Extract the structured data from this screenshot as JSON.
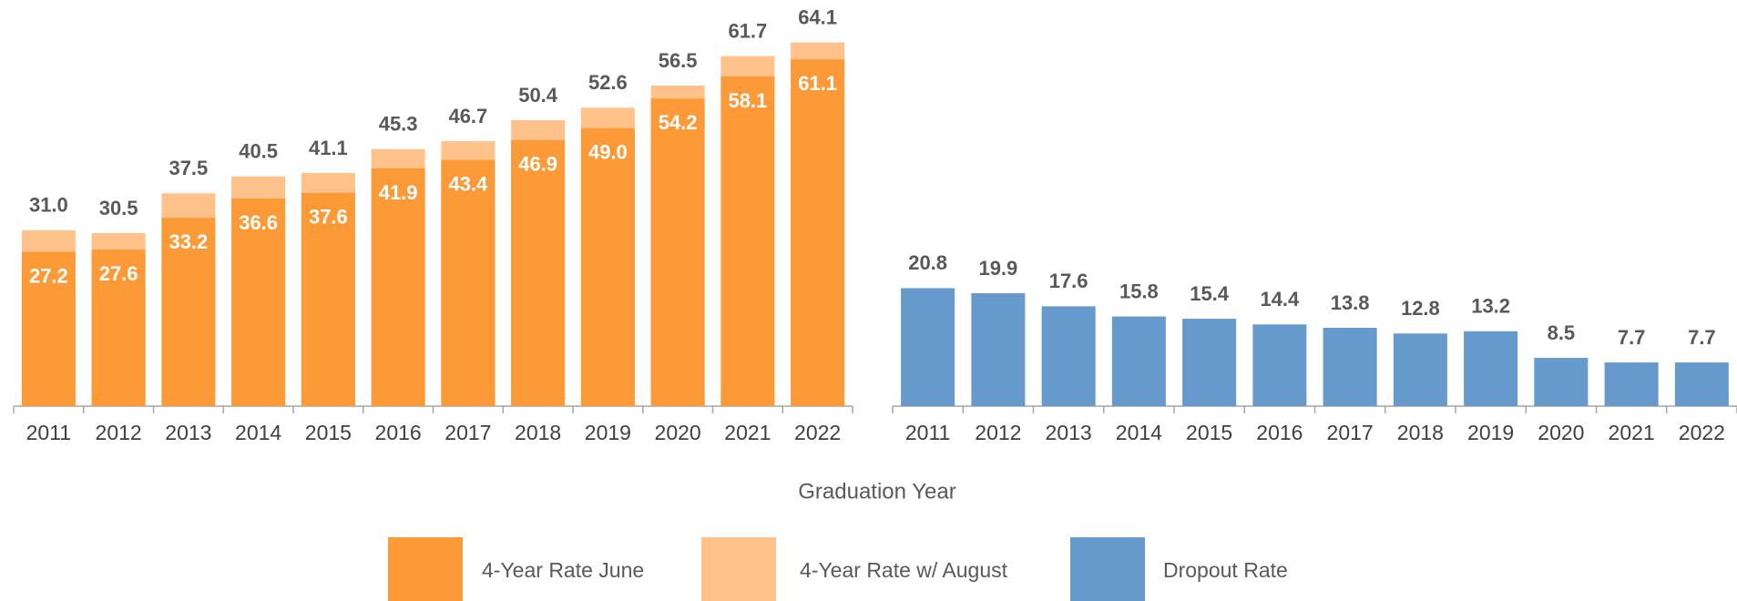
{
  "chart_data": [
    {
      "type": "bar",
      "overlap": true,
      "categories": [
        "2011",
        "2012",
        "2013",
        "2014",
        "2015",
        "2016",
        "2017",
        "2018",
        "2019",
        "2020",
        "2021",
        "2022"
      ],
      "x_label": "Graduation Year",
      "series": [
        {
          "name": "4-Year Rate w/ August",
          "color": "#ffc28a",
          "values": [
            31.0,
            30.5,
            37.5,
            40.5,
            41.1,
            45.3,
            46.7,
            50.4,
            52.6,
            56.5,
            61.7,
            64.1
          ],
          "value_labels": [
            "31.0",
            "30.5",
            "37.5",
            "40.5",
            "41.1",
            "45.3",
            "46.7",
            "50.4",
            "52.6",
            "56.5",
            "61.7",
            "64.1"
          ]
        },
        {
          "name": "4-Year Rate June",
          "color": "#fd9a38",
          "values": [
            27.2,
            27.6,
            33.2,
            36.6,
            37.6,
            41.9,
            43.4,
            46.9,
            49.0,
            54.2,
            58.1,
            61.1
          ],
          "value_labels": [
            "27.2",
            "27.6",
            "33.2",
            "36.6",
            "37.6",
            "41.9",
            "43.4",
            "46.9",
            "49.0",
            "54.2",
            "58.1",
            "61.1"
          ]
        }
      ]
    },
    {
      "type": "bar",
      "categories": [
        "2011",
        "2012",
        "2013",
        "2014",
        "2015",
        "2016",
        "2017",
        "2018",
        "2019",
        "2020",
        "2021",
        "2022"
      ],
      "series": [
        {
          "name": "Dropout Rate",
          "color": "#6699cc",
          "values": [
            20.8,
            19.9,
            17.6,
            15.8,
            15.4,
            14.4,
            13.8,
            12.8,
            13.2,
            8.5,
            7.7,
            7.7
          ],
          "value_labels": [
            "20.8",
            "19.9",
            "17.6",
            "15.8",
            "15.4",
            "14.4",
            "13.8",
            "12.8",
            "13.2",
            "8.5",
            "7.7",
            "7.7"
          ]
        }
      ]
    }
  ]
}
